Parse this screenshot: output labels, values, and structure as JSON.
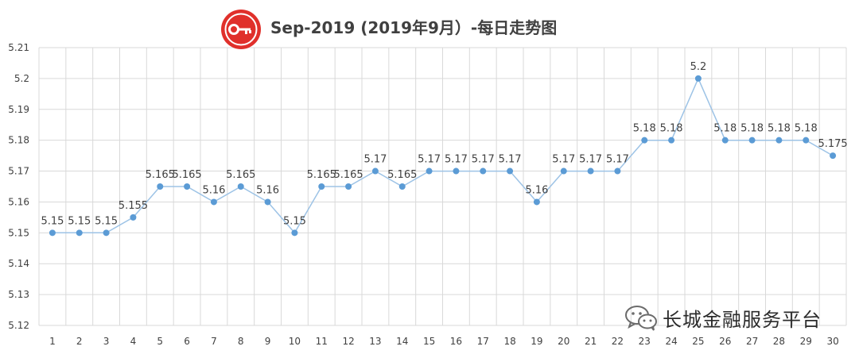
{
  "title": "Sep-2019 (2019年9月）-每日走势图",
  "logo_icon": "key-icon",
  "watermark": {
    "icon": "wechat-icon",
    "text": "长城金融服务平台"
  },
  "colors": {
    "line": "#9dc3e6",
    "marker": "#5b9bd5",
    "logo": "#e0302b",
    "grid": "#d9d9d9",
    "label": "#404040"
  },
  "chart_data": {
    "type": "line",
    "title": "Sep-2019 (2019年9月）-每日走势图",
    "xlabel": "",
    "ylabel": "",
    "x": [
      1,
      2,
      3,
      4,
      5,
      6,
      7,
      8,
      9,
      10,
      11,
      12,
      13,
      14,
      15,
      16,
      17,
      18,
      19,
      20,
      21,
      22,
      23,
      24,
      25,
      26,
      27,
      28,
      29,
      30
    ],
    "values": [
      5.15,
      5.15,
      5.15,
      5.155,
      5.165,
      5.165,
      5.16,
      5.165,
      5.16,
      5.15,
      5.165,
      5.165,
      5.17,
      5.165,
      5.17,
      5.17,
      5.17,
      5.17,
      5.16,
      5.17,
      5.17,
      5.17,
      5.18,
      5.18,
      5.2,
      5.18,
      5.18,
      5.18,
      5.18,
      5.175
    ],
    "data_labels": [
      "5.15",
      "5.15",
      "5.15",
      "5.155",
      "5.165",
      "5.165",
      "5.16",
      "5.165",
      "5.16",
      "5.15",
      "5.165",
      "5.165",
      "5.17",
      "5.165",
      "5.17",
      "5.17",
      "5.17",
      "5.17",
      "5.16",
      "5.17",
      "5.17",
      "5.17",
      "5.18",
      "5.18",
      "5.2",
      "5.18",
      "5.18",
      "5.18",
      "5.18",
      "5.175"
    ],
    "yticks": [
      "5.12",
      "5.13",
      "5.14",
      "5.15",
      "5.16",
      "5.17",
      "5.18",
      "5.19",
      "5.2",
      "5.21"
    ],
    "ylim": [
      5.12,
      5.21
    ],
    "grid": true,
    "legend": "none"
  }
}
